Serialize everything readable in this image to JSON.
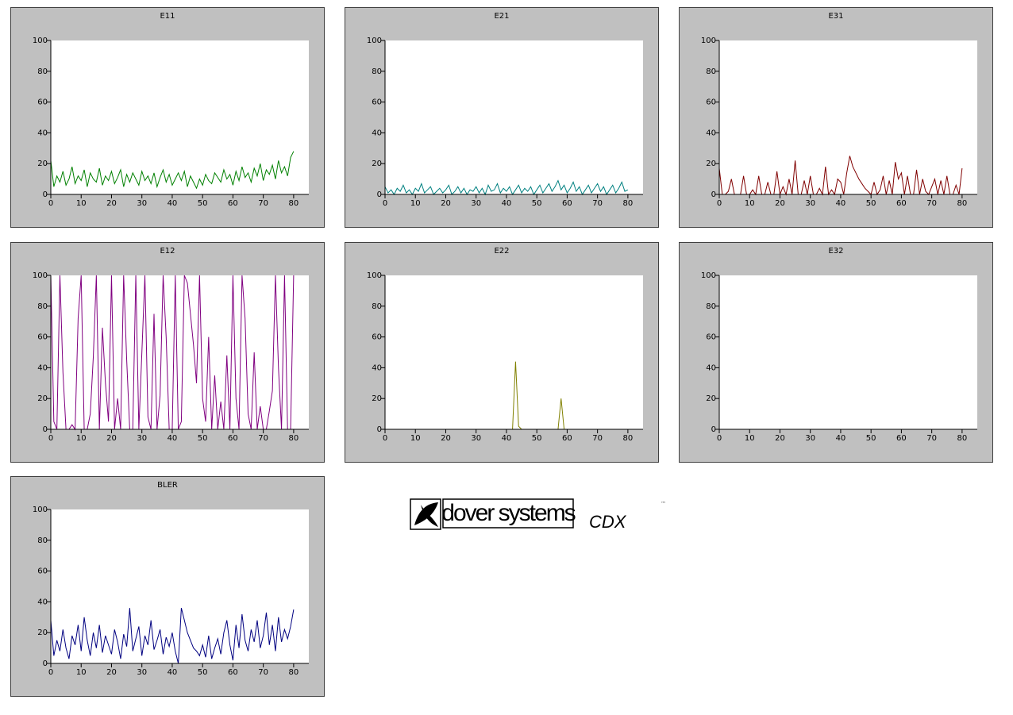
{
  "chart_data": [
    {
      "type": "line",
      "title": "E11",
      "color": "#008000",
      "xlim": [
        0,
        85
      ],
      "ylim": [
        0,
        100
      ],
      "xticks": [
        0,
        10,
        20,
        30,
        40,
        50,
        60,
        70,
        80
      ],
      "yticks": [
        0,
        20,
        40,
        60,
        80,
        100
      ],
      "x": [
        0,
        1,
        2,
        3,
        4,
        5,
        6,
        7,
        8,
        9,
        10,
        11,
        12,
        13,
        14,
        15,
        16,
        17,
        18,
        19,
        20,
        21,
        22,
        23,
        24,
        25,
        26,
        27,
        28,
        29,
        30,
        31,
        32,
        33,
        34,
        35,
        36,
        37,
        38,
        39,
        40,
        41,
        42,
        43,
        44,
        45,
        46,
        47,
        48,
        49,
        50,
        51,
        52,
        53,
        54,
        55,
        56,
        57,
        58,
        59,
        60,
        61,
        62,
        63,
        64,
        65,
        66,
        67,
        68,
        69,
        70,
        71,
        72,
        73,
        74,
        75,
        76,
        77,
        78,
        79,
        80
      ],
      "values": [
        22,
        5,
        12,
        8,
        15,
        6,
        10,
        18,
        7,
        12,
        9,
        16,
        5,
        14,
        10,
        8,
        17,
        6,
        12,
        9,
        15,
        7,
        11,
        16,
        5,
        13,
        8,
        14,
        10,
        6,
        15,
        9,
        12,
        7,
        14,
        5,
        11,
        16,
        8,
        13,
        6,
        10,
        14,
        9,
        15,
        5,
        12,
        8,
        4,
        10,
        6,
        13,
        9,
        7,
        14,
        11,
        8,
        16,
        10,
        13,
        6,
        15,
        9,
        18,
        11,
        14,
        8,
        17,
        12,
        20,
        9,
        16,
        13,
        19,
        10,
        22,
        14,
        18,
        12,
        24,
        28
      ]
    },
    {
      "type": "line",
      "title": "E21",
      "color": "#008080",
      "xlim": [
        0,
        85
      ],
      "ylim": [
        0,
        100
      ],
      "xticks": [
        0,
        10,
        20,
        30,
        40,
        50,
        60,
        70,
        80
      ],
      "yticks": [
        0,
        20,
        40,
        60,
        80,
        100
      ],
      "x": [
        0,
        1,
        2,
        3,
        4,
        5,
        6,
        7,
        8,
        9,
        10,
        11,
        12,
        13,
        14,
        15,
        16,
        17,
        18,
        19,
        20,
        21,
        22,
        23,
        24,
        25,
        26,
        27,
        28,
        29,
        30,
        31,
        32,
        33,
        34,
        35,
        36,
        37,
        38,
        39,
        40,
        41,
        42,
        43,
        44,
        45,
        46,
        47,
        48,
        49,
        50,
        51,
        52,
        53,
        54,
        55,
        56,
        57,
        58,
        59,
        60,
        61,
        62,
        63,
        64,
        65,
        66,
        67,
        68,
        69,
        70,
        71,
        72,
        73,
        74,
        75,
        76,
        77,
        78,
        79,
        80
      ],
      "values": [
        5,
        1,
        3,
        0,
        4,
        2,
        6,
        1,
        3,
        0,
        4,
        2,
        7,
        1,
        3,
        5,
        0,
        2,
        4,
        1,
        3,
        6,
        0,
        2,
        5,
        1,
        4,
        0,
        3,
        2,
        5,
        1,
        4,
        0,
        6,
        2,
        3,
        7,
        1,
        4,
        2,
        5,
        0,
        3,
        6,
        1,
        4,
        2,
        5,
        0,
        3,
        6,
        1,
        4,
        7,
        2,
        5,
        9,
        3,
        6,
        1,
        4,
        8,
        2,
        5,
        0,
        3,
        6,
        1,
        4,
        7,
        2,
        5,
        0,
        3,
        6,
        1,
        4,
        8,
        2,
        3
      ]
    },
    {
      "type": "line",
      "title": "E31",
      "color": "#800000",
      "xlim": [
        0,
        85
      ],
      "ylim": [
        0,
        100
      ],
      "xticks": [
        0,
        10,
        20,
        30,
        40,
        50,
        60,
        70,
        80
      ],
      "yticks": [
        0,
        20,
        40,
        60,
        80,
        100
      ],
      "x": [
        0,
        1,
        2,
        3,
        4,
        5,
        6,
        7,
        8,
        9,
        10,
        11,
        12,
        13,
        14,
        15,
        16,
        17,
        18,
        19,
        20,
        21,
        22,
        23,
        24,
        25,
        26,
        27,
        28,
        29,
        30,
        31,
        32,
        33,
        34,
        35,
        36,
        37,
        38,
        39,
        40,
        41,
        42,
        43,
        44,
        45,
        46,
        47,
        48,
        49,
        50,
        51,
        52,
        53,
        54,
        55,
        56,
        57,
        58,
        59,
        60,
        61,
        62,
        63,
        64,
        65,
        66,
        67,
        68,
        69,
        70,
        71,
        72,
        73,
        74,
        75,
        76,
        77,
        78,
        79,
        80
      ],
      "values": [
        17,
        0,
        0,
        2,
        10,
        0,
        0,
        0,
        12,
        0,
        0,
        3,
        0,
        12,
        0,
        0,
        8,
        0,
        0,
        15,
        0,
        5,
        0,
        10,
        0,
        22,
        0,
        0,
        9,
        0,
        12,
        0,
        0,
        4,
        0,
        18,
        0,
        3,
        0,
        10,
        8,
        0,
        14,
        25,
        18,
        14,
        10,
        7,
        4,
        2,
        0,
        8,
        0,
        3,
        12,
        0,
        9,
        0,
        21,
        10,
        14,
        0,
        12,
        0,
        0,
        16,
        0,
        10,
        2,
        0,
        5,
        10,
        0,
        9,
        0,
        12,
        0,
        0,
        6,
        0,
        17
      ]
    },
    {
      "type": "line",
      "title": "E12",
      "color": "#800080",
      "xlim": [
        0,
        85
      ],
      "ylim": [
        0,
        100
      ],
      "xticks": [
        0,
        10,
        20,
        30,
        40,
        50,
        60,
        70,
        80
      ],
      "yticks": [
        0,
        20,
        40,
        60,
        80,
        100
      ],
      "x": [
        0,
        1,
        2,
        3,
        4,
        5,
        6,
        7,
        8,
        9,
        10,
        11,
        12,
        13,
        14,
        15,
        16,
        17,
        18,
        19,
        20,
        21,
        22,
        23,
        24,
        25,
        26,
        27,
        28,
        29,
        30,
        31,
        32,
        33,
        34,
        35,
        36,
        37,
        38,
        39,
        40,
        41,
        42,
        43,
        44,
        45,
        46,
        47,
        48,
        49,
        50,
        51,
        52,
        53,
        54,
        55,
        56,
        57,
        58,
        59,
        60,
        61,
        62,
        63,
        64,
        65,
        66,
        67,
        68,
        69,
        70,
        71,
        72,
        73,
        74,
        75,
        76,
        77,
        78,
        79,
        80
      ],
      "values": [
        100,
        5,
        0,
        100,
        37,
        0,
        0,
        3,
        0,
        72,
        100,
        0,
        0,
        10,
        47,
        100,
        0,
        66,
        30,
        5,
        100,
        0,
        20,
        0,
        100,
        45,
        0,
        0,
        100,
        0,
        50,
        100,
        8,
        0,
        75,
        0,
        22,
        100,
        60,
        0,
        0,
        100,
        0,
        5,
        100,
        95,
        75,
        55,
        30,
        100,
        20,
        5,
        60,
        0,
        35,
        0,
        18,
        0,
        48,
        0,
        100,
        20,
        0,
        100,
        72,
        10,
        0,
        50,
        0,
        15,
        0,
        0,
        12,
        25,
        100,
        40,
        0,
        100,
        0,
        0,
        100
      ]
    },
    {
      "type": "line",
      "title": "E22",
      "color": "#808000",
      "xlim": [
        0,
        85
      ],
      "ylim": [
        0,
        100
      ],
      "xticks": [
        0,
        10,
        20,
        30,
        40,
        50,
        60,
        70,
        80
      ],
      "yticks": [
        0,
        20,
        40,
        60,
        80,
        100
      ],
      "x": [
        0,
        1,
        2,
        3,
        4,
        5,
        6,
        7,
        8,
        9,
        10,
        11,
        12,
        13,
        14,
        15,
        16,
        17,
        18,
        19,
        20,
        21,
        22,
        23,
        24,
        25,
        26,
        27,
        28,
        29,
        30,
        31,
        32,
        33,
        34,
        35,
        36,
        37,
        38,
        39,
        40,
        41,
        42,
        43,
        44,
        45,
        46,
        47,
        48,
        49,
        50,
        51,
        52,
        53,
        54,
        55,
        56,
        57,
        58,
        59,
        60,
        61,
        62,
        63,
        64,
        65,
        66,
        67,
        68,
        69,
        70,
        71,
        72,
        73,
        74,
        75,
        76,
        77,
        78,
        79,
        80
      ],
      "values": [
        0,
        0,
        0,
        0,
        0,
        0,
        0,
        0,
        0,
        0,
        0,
        0,
        0,
        0,
        0,
        0,
        0,
        0,
        0,
        0,
        0,
        0,
        0,
        0,
        0,
        0,
        0,
        0,
        0,
        0,
        0,
        0,
        0,
        0,
        0,
        0,
        0,
        0,
        0,
        0,
        0,
        0,
        0,
        44,
        2,
        0,
        0,
        0,
        0,
        0,
        0,
        0,
        0,
        0,
        0,
        0,
        0,
        0,
        20,
        0,
        0,
        0,
        0,
        0,
        0,
        0,
        0,
        0,
        0,
        0,
        0,
        0,
        0,
        0,
        0,
        0,
        0,
        0,
        0,
        0,
        0
      ]
    },
    {
      "type": "line",
      "title": "E32",
      "color": "#000080",
      "xlim": [
        0,
        85
      ],
      "ylim": [
        0,
        100
      ],
      "xticks": [
        0,
        10,
        20,
        30,
        40,
        50,
        60,
        70,
        80
      ],
      "yticks": [
        0,
        20,
        40,
        60,
        80,
        100
      ],
      "x": [
        0,
        1,
        2,
        3,
        4,
        5,
        6,
        7,
        8,
        9,
        10,
        11,
        12,
        13,
        14,
        15,
        16,
        17,
        18,
        19,
        20,
        21,
        22,
        23,
        24,
        25,
        26,
        27,
        28,
        29,
        30,
        31,
        32,
        33,
        34,
        35,
        36,
        37,
        38,
        39,
        40,
        41,
        42,
        43,
        44,
        45,
        46,
        47,
        48,
        49,
        50,
        51,
        52,
        53,
        54,
        55,
        56,
        57,
        58,
        59,
        60,
        61,
        62,
        63,
        64,
        65,
        66,
        67,
        68,
        69,
        70,
        71,
        72,
        73,
        74,
        75,
        76,
        77,
        78,
        79,
        80
      ],
      "values": [
        0,
        0,
        0,
        0,
        0,
        0,
        0,
        0,
        0,
        0,
        0,
        0,
        0,
        0,
        0,
        0,
        0,
        0,
        0,
        0,
        0,
        0,
        0,
        0,
        0,
        0,
        0,
        0,
        0,
        0,
        0,
        0,
        0,
        0,
        0,
        0,
        0,
        0,
        0,
        0,
        0,
        0,
        0,
        0,
        0,
        0,
        0,
        0,
        0,
        0,
        0,
        0,
        0,
        0,
        0,
        0,
        0,
        0,
        0,
        0,
        0,
        0,
        0,
        0,
        0,
        0,
        0,
        0,
        0,
        0,
        0,
        0,
        0,
        0,
        0,
        0,
        0,
        0,
        0,
        0,
        0
      ]
    },
    {
      "type": "line",
      "title": "BLER",
      "color": "#000080",
      "xlim": [
        0,
        85
      ],
      "ylim": [
        0,
        100
      ],
      "xticks": [
        0,
        10,
        20,
        30,
        40,
        50,
        60,
        70,
        80
      ],
      "yticks": [
        0,
        20,
        40,
        60,
        80,
        100
      ],
      "x": [
        0,
        1,
        2,
        3,
        4,
        5,
        6,
        7,
        8,
        9,
        10,
        11,
        12,
        13,
        14,
        15,
        16,
        17,
        18,
        19,
        20,
        21,
        22,
        23,
        24,
        25,
        26,
        27,
        28,
        29,
        30,
        31,
        32,
        33,
        34,
        35,
        36,
        37,
        38,
        39,
        40,
        41,
        42,
        43,
        44,
        45,
        46,
        47,
        48,
        49,
        50,
        51,
        52,
        53,
        54,
        55,
        56,
        57,
        58,
        59,
        60,
        61,
        62,
        63,
        64,
        65,
        66,
        67,
        68,
        69,
        70,
        71,
        72,
        73,
        74,
        75,
        76,
        77,
        78,
        79,
        80
      ],
      "values": [
        28,
        5,
        15,
        8,
        22,
        10,
        3,
        18,
        12,
        25,
        8,
        30,
        15,
        5,
        20,
        10,
        25,
        7,
        18,
        12,
        6,
        22,
        14,
        3,
        19,
        11,
        36,
        8,
        16,
        24,
        5,
        18,
        12,
        28,
        9,
        15,
        22,
        6,
        17,
        11,
        20,
        8,
        0,
        36,
        28,
        20,
        15,
        10,
        8,
        5,
        12,
        4,
        18,
        3,
        10,
        16,
        6,
        20,
        28,
        12,
        2,
        25,
        10,
        32,
        15,
        8,
        22,
        14,
        28,
        10,
        18,
        33,
        12,
        25,
        8,
        30,
        14,
        22,
        16,
        24,
        35
      ]
    }
  ],
  "logo": {
    "brand": "dover systems",
    "product": "CDX",
    "trademark": "™"
  }
}
